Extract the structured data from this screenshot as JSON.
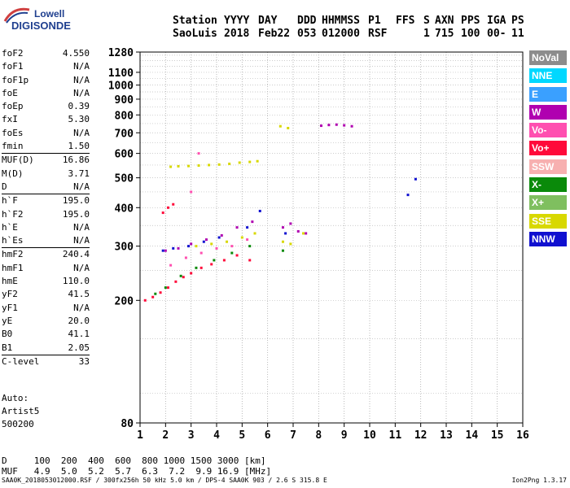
{
  "logo": {
    "line1": "Lowell",
    "line2": "DIGISONDE"
  },
  "header": {
    "station_label": "Station",
    "station": "SaoLuis",
    "col_labels": [
      "YYYY",
      "DAY",
      "DDD",
      "HHMMSS",
      "P1",
      "FFS",
      "S",
      "AXN",
      "PPS",
      "IGA",
      "PS"
    ],
    "col_values": [
      "2018",
      "Feb22",
      "053",
      "012000",
      "RSF",
      "",
      "1",
      "715",
      "100",
      "00-",
      "11"
    ]
  },
  "params": [
    {
      "k": "foF2",
      "v": "4.550"
    },
    {
      "k": "foF1",
      "v": "N/A"
    },
    {
      "k": "foF1p",
      "v": "N/A"
    },
    {
      "k": "foE",
      "v": "N/A"
    },
    {
      "k": "foEp",
      "v": "0.39"
    },
    {
      "k": "fxI",
      "v": "5.30"
    },
    {
      "k": "foEs",
      "v": "N/A"
    },
    {
      "k": "fmin",
      "v": "1.50"
    },
    {
      "sep": true
    },
    {
      "k": "MUF(D)",
      "v": "16.86"
    },
    {
      "k": "M(D)",
      "v": "3.71"
    },
    {
      "k": "D",
      "v": "N/A"
    },
    {
      "sep": true
    },
    {
      "k": "h`F",
      "v": "195.0"
    },
    {
      "k": "h`F2",
      "v": "195.0"
    },
    {
      "k": "h`E",
      "v": "N/A"
    },
    {
      "k": "h`Es",
      "v": "N/A"
    },
    {
      "sep": true
    },
    {
      "k": "hmF2",
      "v": "240.4"
    },
    {
      "k": "hmF1",
      "v": "N/A"
    },
    {
      "k": "hmE",
      "v": "110.0"
    },
    {
      "k": "yF2",
      "v": "41.5"
    },
    {
      "k": "yF1",
      "v": "N/A"
    },
    {
      "k": "yE",
      "v": "20.0"
    },
    {
      "k": "B0",
      "v": "41.1"
    },
    {
      "k": "B1",
      "v": "2.05"
    },
    {
      "sep": true
    },
    {
      "k": "C-level",
      "v": "33"
    }
  ],
  "auto": {
    "line1": "Auto:",
    "line2": "Artist5",
    "line3": "500200"
  },
  "legend": [
    {
      "label": "NoVal",
      "color": "#8c8c8c"
    },
    {
      "label": "NNE",
      "color": "#00d8ff"
    },
    {
      "label": "E",
      "color": "#3aa0ff"
    },
    {
      "label": "W",
      "color": "#b000b0"
    },
    {
      "label": "Vo-",
      "color": "#ff4fb0"
    },
    {
      "label": "Vo+",
      "color": "#ff0a3a"
    },
    {
      "label": "SSW",
      "color": "#f7b0b0"
    },
    {
      "label": "X-",
      "color": "#0a8a0a"
    },
    {
      "label": "X+",
      "color": "#7fbf5f"
    },
    {
      "label": "SSE",
      "color": "#d8d800"
    },
    {
      "label": "NNW",
      "color": "#1010d0"
    }
  ],
  "footer": {
    "d_line": "D     100  200  400  600  800 1000 1500 3000 [km]",
    "muf_line": "MUF   4.9  5.0  5.2  5.7  6.3  7.2  9.9 16.9 [MHz]",
    "bottom": "SAA0K_2018053012000.RSF / 300fx256h 50 kHz 5.0 km / DPS-4 SAA0K 903 / 2.6 S 315.8 E",
    "version": "Ion2Png 1.3.17"
  },
  "chart_data": {
    "type": "scatter",
    "x_ticks": [
      1,
      2,
      3,
      4,
      5,
      6,
      7,
      8,
      9,
      10,
      11,
      12,
      13,
      14,
      15,
      16
    ],
    "y_ticks": [
      80,
      200,
      300,
      400,
      500,
      600,
      700,
      800,
      900,
      1000,
      1100,
      1280
    ],
    "xlim": [
      1,
      16
    ],
    "ylim": [
      80,
      1280
    ],
    "grid": true,
    "series": [
      {
        "color": "#d8d800",
        "points": [
          [
            2.2,
            543
          ],
          [
            2.5,
            545
          ],
          [
            2.9,
            546
          ],
          [
            3.3,
            548
          ],
          [
            3.7,
            550
          ],
          [
            4.1,
            552
          ],
          [
            4.5,
            555
          ],
          [
            4.9,
            560
          ],
          [
            5.3,
            563
          ],
          [
            5.6,
            566
          ],
          [
            6.5,
            735
          ],
          [
            6.8,
            725
          ],
          [
            3.2,
            300
          ],
          [
            3.8,
            305
          ],
          [
            4.4,
            310
          ],
          [
            5.0,
            320
          ],
          [
            5.5,
            330
          ],
          [
            6.6,
            310
          ],
          [
            6.9,
            305
          ],
          [
            7.4,
            330
          ]
        ]
      },
      {
        "color": "#b000b0",
        "points": [
          [
            8.1,
            738
          ],
          [
            8.4,
            742
          ],
          [
            8.7,
            744
          ],
          [
            9.0,
            740
          ],
          [
            9.3,
            735
          ],
          [
            6.6,
            345
          ],
          [
            6.9,
            355
          ],
          [
            7.2,
            335
          ],
          [
            7.5,
            330
          ],
          [
            2.0,
            290
          ],
          [
            2.5,
            295
          ],
          [
            3.0,
            305
          ],
          [
            3.6,
            315
          ],
          [
            4.2,
            325
          ],
          [
            4.8,
            345
          ],
          [
            5.4,
            360
          ]
        ]
      },
      {
        "color": "#ff0a3a",
        "points": [
          [
            1.2,
            200
          ],
          [
            1.5,
            205
          ],
          [
            1.8,
            212
          ],
          [
            2.1,
            220
          ],
          [
            2.4,
            230
          ],
          [
            2.7,
            238
          ],
          [
            3.0,
            245
          ],
          [
            3.4,
            255
          ],
          [
            3.8,
            262
          ],
          [
            4.3,
            270
          ],
          [
            4.8,
            280
          ],
          [
            5.3,
            270
          ],
          [
            1.9,
            385
          ],
          [
            2.1,
            400
          ],
          [
            2.3,
            410
          ]
        ]
      },
      {
        "color": "#1010d0",
        "points": [
          [
            1.9,
            290
          ],
          [
            2.3,
            295
          ],
          [
            2.9,
            300
          ],
          [
            3.5,
            310
          ],
          [
            4.1,
            320
          ],
          [
            5.2,
            345
          ],
          [
            5.7,
            390
          ],
          [
            6.7,
            330
          ],
          [
            11.5,
            440
          ],
          [
            11.8,
            495
          ]
        ]
      },
      {
        "color": "#0a8a0a",
        "points": [
          [
            1.6,
            210
          ],
          [
            2.0,
            220
          ],
          [
            2.6,
            240
          ],
          [
            3.2,
            255
          ],
          [
            3.9,
            270
          ],
          [
            4.6,
            285
          ],
          [
            5.3,
            300
          ],
          [
            6.6,
            290
          ]
        ]
      },
      {
        "color": "#ff4fb0",
        "points": [
          [
            2.2,
            260
          ],
          [
            2.8,
            275
          ],
          [
            3.4,
            285
          ],
          [
            4.0,
            295
          ],
          [
            4.6,
            300
          ],
          [
            5.2,
            315
          ],
          [
            3.0,
            450
          ],
          [
            3.3,
            600
          ]
        ]
      }
    ]
  }
}
